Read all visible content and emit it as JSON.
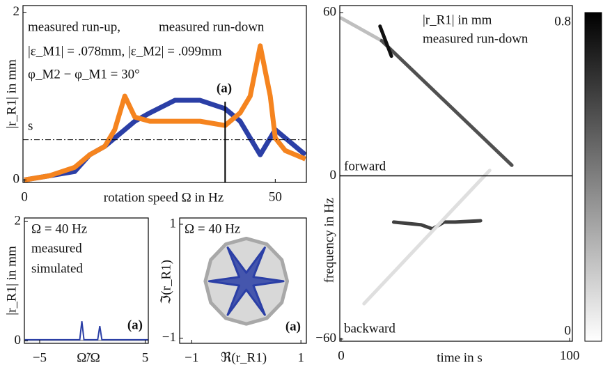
{
  "chart_data": [
    {
      "type": "line",
      "series": [
        {
          "name": "measured run-up,",
          "color": "#f5841f",
          "x": [
            0,
            5,
            10,
            13,
            16,
            18,
            20,
            22,
            25,
            30,
            35,
            40,
            43,
            45,
            46,
            47,
            48,
            49,
            50,
            52,
            54,
            56
          ],
          "values": [
            0,
            0.05,
            0.15,
            0.3,
            0.4,
            0.6,
            1.0,
            0.75,
            0.7,
            0.7,
            0.7,
            0.65,
            0.8,
            1.0,
            1.3,
            1.6,
            1.3,
            1.0,
            0.5,
            0.35,
            0.3,
            0.25
          ]
        },
        {
          "name": "measured run-down",
          "color": "#2b3fa6",
          "x": [
            0,
            5,
            10,
            13,
            16,
            18,
            20,
            22,
            25,
            30,
            35,
            40,
            43,
            45,
            47,
            50,
            52,
            56
          ],
          "values": [
            0,
            0.05,
            0.1,
            0.3,
            0.4,
            0.5,
            0.6,
            0.7,
            0.8,
            0.95,
            0.95,
            0.85,
            0.7,
            0.5,
            0.3,
            0.6,
            0.5,
            0.3
          ]
        }
      ],
      "annotations": [
        "|ε_M1| = .078mm, |ε_M2| = .099mm",
        "φ_M2 − φ_M1 = 30°"
      ],
      "marker": {
        "x": 40,
        "label": "(a)"
      },
      "hline": {
        "y": 0.48,
        "label": "s"
      },
      "x_label": "rotation speed Ω in Hz",
      "y_label": "|r_R1| in mm",
      "xlim": [
        -0.3,
        56.2
      ],
      "xticks": [
        0,
        50
      ],
      "ylim": [
        -0.03,
        2.08
      ],
      "yticks": [
        0,
        2
      ]
    },
    {
      "type": "spectrum",
      "series": [
        {
          "name": "measured",
          "color": "#2b3fa6",
          "x": [
            -6.4,
            -1.2,
            -1.0,
            -0.8,
            0.5,
            0.7,
            0.9,
            5.3
          ],
          "values": [
            0.02,
            0.02,
            0.33,
            0.02,
            0.02,
            0.25,
            0.02,
            0.02
          ]
        },
        {
          "name": "simulated",
          "color": "#a8a8a8",
          "x": [
            -6.4,
            5.3
          ],
          "values": [
            0.01,
            0.01
          ]
        }
      ],
      "annotations": [
        "Ω = 40 Hz",
        "(a)"
      ],
      "x_label": "Ω̃/Ω",
      "y_label": "|r_R1| in mm",
      "xlim": [
        -6.45,
        5.3
      ],
      "xticks": [
        {
          "value": -5,
          "label": "−5"
        },
        5
      ],
      "ylim": [
        -0.04,
        2.06
      ],
      "yticks": [
        0,
        2
      ]
    },
    {
      "type": "orbit",
      "series": [
        {
          "name": "simulated",
          "color": "#a8a8a8",
          "x": [
            0.75,
            0.65,
            0.375,
            0,
            -0.375,
            -0.65,
            -0.75,
            -0.65,
            -0.375,
            0,
            0.375,
            0.65
          ],
          "values": [
            0,
            0.375,
            0.65,
            0.75,
            0.65,
            0.375,
            0,
            -0.375,
            -0.65,
            -0.75,
            -0.65,
            -0.375
          ]
        },
        {
          "name": "measured",
          "color": "#2b3fa6",
          "x": [
            0.68,
            0.13,
            0.34,
            0,
            -0.34,
            -0.13,
            -0.68,
            -0.13,
            -0.34,
            0,
            0.34,
            0.13
          ],
          "values": [
            0,
            0.075,
            0.59,
            0.15,
            0.59,
            0.075,
            0,
            -0.075,
            -0.59,
            -0.15,
            -0.59,
            -0.075
          ]
        }
      ],
      "annotations": [
        "Ω = 40 Hz",
        "(a)"
      ],
      "x_label": "ℜ(r_R1)",
      "y_label": "ℑ(r_R1)",
      "xlim": [
        -1.22,
        1.1
      ],
      "xticks": [
        {
          "value": -1,
          "label": "−1"
        },
        1
      ],
      "ylim": [
        -1.09,
        1.11
      ],
      "yticks": [
        {
          "value": -1,
          "label": "−1"
        },
        1
      ]
    },
    {
      "type": "spectrogram",
      "streaks": [
        {
          "x": [
            0,
            17.7
          ],
          "values": [
            58,
            49.7
          ],
          "intensity": 0.2
        },
        {
          "x": [
            17.7,
            74.7
          ],
          "values": [
            49.7,
            3.9
          ],
          "intensity": 0.55
        },
        {
          "x": [
            17,
            22
          ],
          "values": [
            55,
            44
          ],
          "intensity": 0.75
        },
        {
          "x": [
            23,
            35,
            40,
            45,
            50,
            61
          ],
          "values": [
            -17,
            -18,
            -19.5,
            -17,
            -17,
            -16.5
          ],
          "intensity": 0.6
        },
        {
          "x": [
            10,
            65
          ],
          "values": [
            -47,
            2
          ],
          "intensity": 0.1
        }
      ],
      "annotations": [
        "|r_R1| in mm",
        "measured run-down",
        "forward",
        "backward"
      ],
      "x_label": "time in s",
      "y_label": "frequency in Hz",
      "xlim": [
        -0.6,
        101.2
      ],
      "xticks": [
        0,
        100
      ],
      "ylim": [
        -60.8,
        62.6
      ],
      "yticks": [
        {
          "value": -60,
          "label": "−60"
        },
        0,
        60
      ],
      "colorbar": {
        "clim": [
          0,
          0.8
        ],
        "colormap": [
          "#ffffff",
          "#000000"
        ],
        "ticks": [
          {
            "value": 0,
            "label": "0"
          },
          {
            "value": 0.8,
            "label": "0.8"
          }
        ]
      }
    }
  ]
}
